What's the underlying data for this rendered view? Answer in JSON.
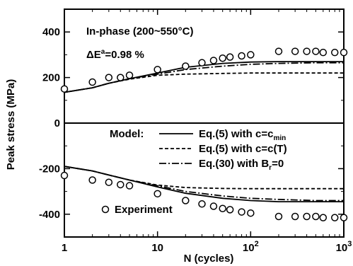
{
  "chart_data": {
    "type": "line",
    "title": "",
    "xlabel": "N (cycles)",
    "ylabel": "Peak stress (MPa)",
    "x_scale": "log",
    "xlim": [
      1,
      1000
    ],
    "ylim": [
      -500,
      500
    ],
    "x_ticks": [
      {
        "value": 1,
        "label": "1"
      },
      {
        "value": 10,
        "label": "10"
      },
      {
        "value": 100,
        "base": "10",
        "exp": "2"
      },
      {
        "value": 1000,
        "base": "10",
        "exp": "3"
      }
    ],
    "y_ticks": [
      {
        "value": 400,
        "label": "400"
      },
      {
        "value": 200,
        "label": "200"
      },
      {
        "value": 0,
        "label": "0"
      },
      {
        "value": -200,
        "label": "-200"
      },
      {
        "value": -400,
        "label": "-400"
      }
    ],
    "annotations": {
      "condition": "In-phase (200~550°C)",
      "strain_prefix": "ΔE",
      "strain_sup": "a",
      "strain_value": "=0.98 %",
      "model_label": "Model:"
    },
    "legend": [
      {
        "style": "solid",
        "text": "Eq.(5) with c=c",
        "sub": "min"
      },
      {
        "style": "dashed",
        "text": "Eq.(5) with c=c(T)",
        "sub": ""
      },
      {
        "style": "dashdot",
        "text": "Eq.(30) with B",
        "sub": "r",
        "suffix": "=0"
      },
      {
        "style": "marker",
        "text": "Experiment",
        "sub": ""
      }
    ],
    "series": [
      {
        "name": "Eq.(5) with c=cmin",
        "style": "solid",
        "branch": "tension",
        "x": [
          1,
          2,
          3,
          5,
          10,
          20,
          50,
          100,
          200,
          500,
          1000
        ],
        "y": [
          135,
          155,
          175,
          195,
          220,
          245,
          262,
          268,
          270,
          270,
          270
        ]
      },
      {
        "name": "Eq.(5) with c=c(T)",
        "style": "dashed",
        "branch": "tension",
        "x": [
          1,
          2,
          3,
          5,
          10,
          20,
          50,
          100,
          200,
          500,
          1000
        ],
        "y": [
          135,
          155,
          175,
          193,
          210,
          215,
          218,
          220,
          220,
          220,
          220
        ]
      },
      {
        "name": "Eq.(30) with Br=0",
        "style": "dashdot",
        "branch": "tension",
        "x": [
          1,
          2,
          3,
          5,
          10,
          20,
          50,
          100,
          200,
          500,
          1000
        ],
        "y": [
          135,
          155,
          175,
          195,
          215,
          235,
          250,
          258,
          262,
          265,
          265
        ]
      },
      {
        "name": "Eq.(5) with c=cmin",
        "style": "solid",
        "branch": "compression",
        "x": [
          1,
          2,
          3,
          5,
          10,
          20,
          50,
          100,
          200,
          500,
          1000
        ],
        "y": [
          -190,
          -210,
          -228,
          -250,
          -280,
          -308,
          -330,
          -340,
          -345,
          -345,
          -345
        ]
      },
      {
        "name": "Eq.(5) with c=c(T)",
        "style": "dashed",
        "branch": "compression",
        "x": [
          1,
          2,
          3,
          5,
          10,
          20,
          50,
          100,
          200,
          500,
          1000
        ],
        "y": [
          -190,
          -210,
          -228,
          -250,
          -272,
          -283,
          -287,
          -288,
          -288,
          -288,
          -288
        ]
      },
      {
        "name": "Eq.(30) with Br=0",
        "style": "dashdot",
        "branch": "compression",
        "x": [
          1,
          2,
          3,
          5,
          10,
          20,
          50,
          100,
          200,
          500,
          1000
        ],
        "y": [
          -190,
          -210,
          -228,
          -250,
          -275,
          -300,
          -320,
          -330,
          -335,
          -340,
          -340
        ]
      },
      {
        "name": "Experiment",
        "style": "marker",
        "branch": "tension",
        "x": [
          1,
          2,
          3,
          4,
          5,
          10,
          20,
          30,
          40,
          50,
          60,
          80,
          100,
          200,
          300,
          400,
          500,
          600,
          800,
          1000
        ],
        "y": [
          150,
          180,
          200,
          200,
          210,
          235,
          250,
          265,
          275,
          285,
          290,
          295,
          300,
          315,
          315,
          315,
          315,
          310,
          310,
          310
        ]
      },
      {
        "name": "Experiment",
        "style": "marker",
        "branch": "compression",
        "x": [
          1,
          2,
          3,
          4,
          5,
          10,
          20,
          30,
          40,
          50,
          60,
          80,
          100,
          200,
          300,
          400,
          500,
          600,
          800,
          1000
        ],
        "y": [
          -230,
          -250,
          -260,
          -270,
          -275,
          -310,
          -340,
          -355,
          -365,
          -375,
          -380,
          -390,
          -395,
          -410,
          -410,
          -410,
          -410,
          -415,
          -415,
          -415
        ]
      }
    ]
  }
}
